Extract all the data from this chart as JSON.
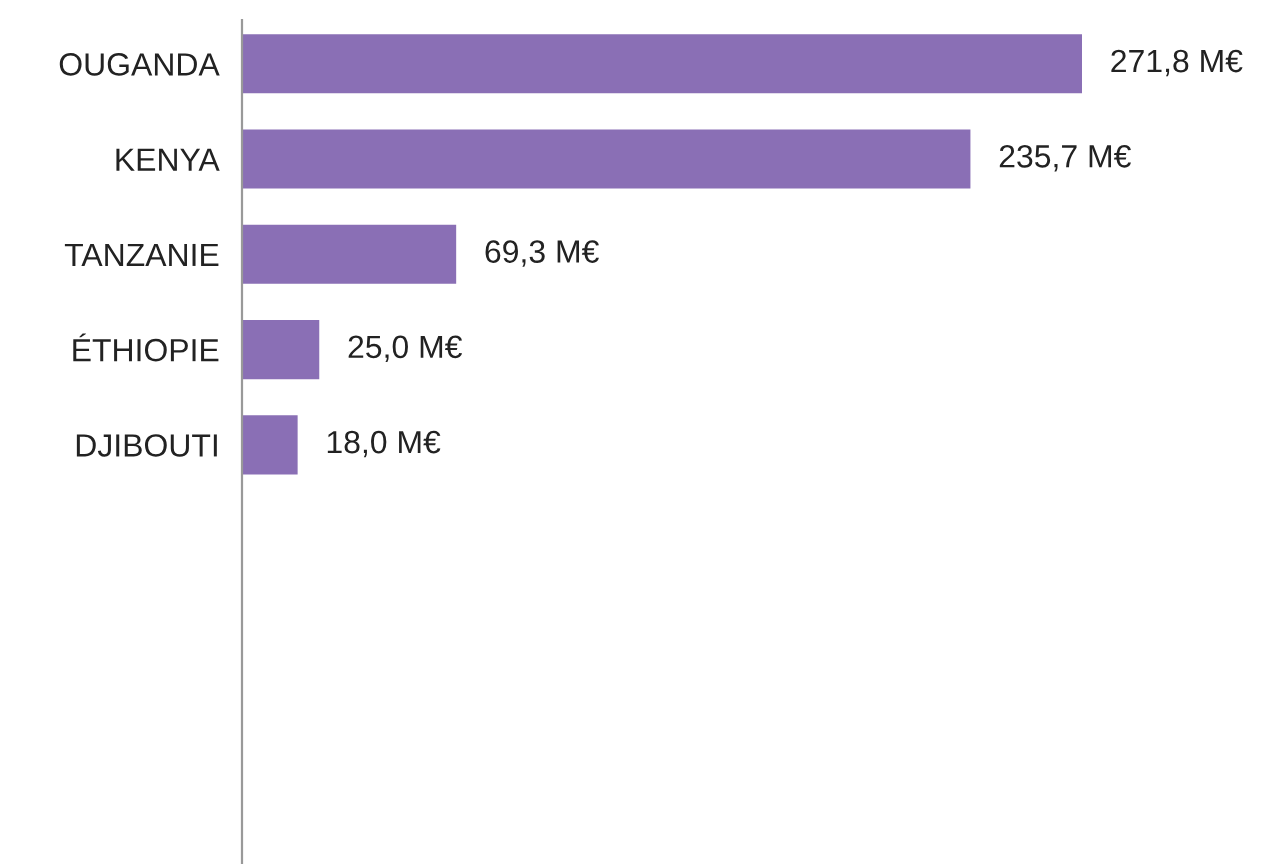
{
  "chart_data": {
    "type": "bar",
    "orientation": "horizontal",
    "categories": [
      "OUGANDA",
      "KENYA",
      "TANZANIE",
      "ÉTHIOPIE",
      "DJIBOUTI"
    ],
    "values": [
      271.8,
      235.7,
      69.3,
      25.0,
      18.0
    ],
    "value_labels": [
      "271,8 M€",
      "235,7 M€",
      "69,3 M€",
      "25,0 M€",
      "18,0 M€"
    ],
    "color": "#8a6fb5",
    "grid": false,
    "legend": false
  }
}
